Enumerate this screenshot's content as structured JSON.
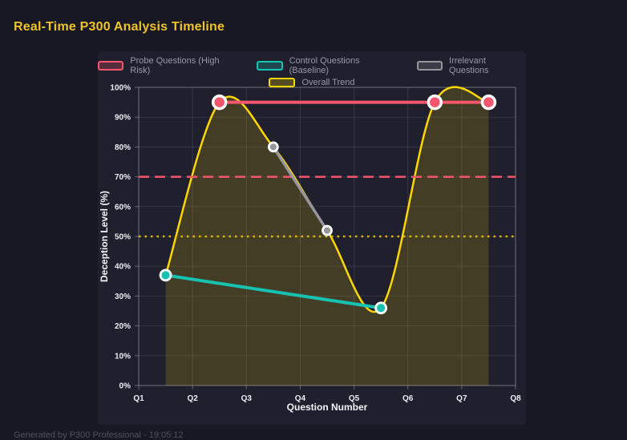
{
  "header": {
    "title": "Real-Time P300 Analysis Timeline"
  },
  "footer": {
    "text": "Generated by P300 Professional - 19:05:12"
  },
  "chart_data": {
    "type": "line",
    "title": "Real-Time P300 Analysis Timeline",
    "xlabel": "Question Number",
    "ylabel": "Deception Level (%)",
    "x_ticks": [
      "Q1",
      "Q2",
      "Q3",
      "Q4",
      "Q5",
      "Q6",
      "Q7",
      "Q8"
    ],
    "x_range": [
      1,
      8
    ],
    "y_ticks": [
      "0%",
      "10%",
      "20%",
      "30%",
      "40%",
      "50%",
      "60%",
      "70%",
      "80%",
      "90%",
      "100%"
    ],
    "ylim": [
      0,
      100
    ],
    "grid": true,
    "legend_position": "top",
    "series": [
      {
        "name": "Probe Questions (High Risk)",
        "color": "#f4566b",
        "x": [
          2.5,
          6.5,
          7.5
        ],
        "values": [
          95,
          95,
          95
        ],
        "line_width": 4,
        "point_radius": 8,
        "smooth": false,
        "area_fill": false
      },
      {
        "name": "Control Questions (Baseline)",
        "color": "#16c2b0",
        "x": [
          1.5,
          5.5
        ],
        "values": [
          37,
          26
        ],
        "line_width": 4,
        "point_radius": 6.5,
        "smooth": false,
        "area_fill": false
      },
      {
        "name": "Irrelevant Questions",
        "color": "#95959d",
        "x": [
          3.5,
          4.5
        ],
        "values": [
          80,
          52
        ],
        "line_width": 3.5,
        "point_radius": 5.5,
        "smooth": false,
        "area_fill": false
      },
      {
        "name": "Overall Trend",
        "color": "#ffd700",
        "x": [
          1.5,
          2.5,
          3.5,
          4.5,
          5.5,
          6.5,
          7.5
        ],
        "values": [
          37,
          95,
          80,
          52,
          26,
          95,
          95
        ],
        "line_width": 2.5,
        "point_radius": 0,
        "smooth": true,
        "area_fill": true,
        "area_opacity": 0.16
      }
    ],
    "thresholds": [
      {
        "value": 70,
        "color": "#f4566b",
        "style": "dashed"
      },
      {
        "value": 50,
        "color": "#e0b400",
        "style": "dotted"
      }
    ]
  }
}
